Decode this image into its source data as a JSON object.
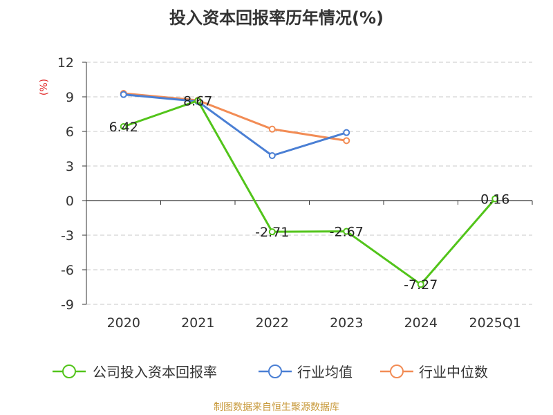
{
  "title": "投入资本回报率历年情况(%)",
  "source": "制图数据来自恒生聚源数据库",
  "chart_data": {
    "type": "line",
    "title": "投入资本回报率历年情况(%)",
    "ylabel": "(%)",
    "xlabel": "",
    "categories": [
      "2020",
      "2021",
      "2022",
      "2023",
      "2024",
      "2025Q1"
    ],
    "ylim": [
      -9,
      12
    ],
    "yticks": [
      12,
      9,
      6,
      3,
      0,
      -3,
      -6,
      -9
    ],
    "grid": true,
    "legend_position": "bottom",
    "series": [
      {
        "name": "公司投入资本回报率",
        "color": "#52c41a",
        "values": [
          6.42,
          8.67,
          -2.71,
          -2.67,
          -7.27,
          0.16
        ],
        "labels": [
          "6.42",
          "8.67",
          "-2.71",
          "-2.67",
          "-7.27",
          "0.16"
        ]
      },
      {
        "name": "行业均值",
        "color": "#4a7fd4",
        "values": [
          9.2,
          8.6,
          3.9,
          5.9,
          null,
          null
        ]
      },
      {
        "name": "行业中位数",
        "color": "#f28c55",
        "values": [
          9.3,
          8.7,
          6.2,
          5.2,
          null,
          null
        ]
      }
    ]
  }
}
